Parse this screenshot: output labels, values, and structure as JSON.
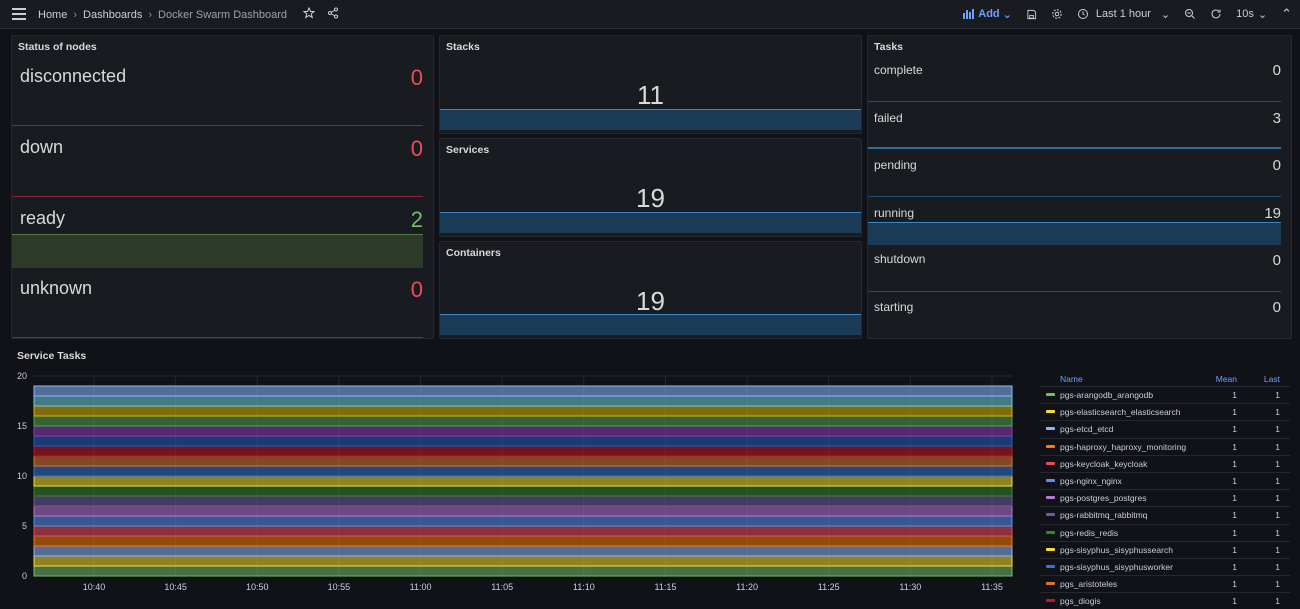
{
  "nav": {
    "breadcrumb": [
      "Home",
      "Dashboards",
      "Docker Swarm Dashboard"
    ],
    "add_label": "Add",
    "time_range": "Last 1 hour",
    "refresh": "10s"
  },
  "nodes_panel": {
    "title": "Status of nodes",
    "rows": [
      {
        "label": "disconnected",
        "value": "0",
        "color": "#f2495c"
      },
      {
        "label": "down",
        "value": "0",
        "color": "#f2495c"
      },
      {
        "label": "ready",
        "value": "2",
        "color": "#73bf69"
      },
      {
        "label": "unknown",
        "value": "0",
        "color": "#f2495c"
      }
    ]
  },
  "stacks": {
    "title": "Stacks",
    "value": "11"
  },
  "services": {
    "title": "Services",
    "value": "19"
  },
  "containers": {
    "title": "Containers",
    "value": "19"
  },
  "tasks_panel": {
    "title": "Tasks",
    "rows": [
      {
        "label": "complete",
        "value": "0"
      },
      {
        "label": "failed",
        "value": "3"
      },
      {
        "label": "pending",
        "value": "0"
      },
      {
        "label": "running",
        "value": "19"
      },
      {
        "label": "shutdown",
        "value": "0"
      },
      {
        "label": "starting",
        "value": "0"
      }
    ]
  },
  "service_tasks": {
    "title": "Service Tasks",
    "legend_headers": {
      "name": "Name",
      "mean": "Mean",
      "last": "Last"
    }
  },
  "chart_data": {
    "type": "area",
    "stacked": true,
    "x": [
      "10:40",
      "10:45",
      "10:50",
      "10:55",
      "11:00",
      "11:05",
      "11:10",
      "11:15",
      "11:20",
      "11:25",
      "11:30",
      "11:35"
    ],
    "yticks": [
      0,
      5,
      10,
      15,
      20
    ],
    "ylim": [
      0,
      20
    ],
    "grid": true,
    "legend_placement": "right",
    "series": [
      {
        "name": "pgs-arangodb_arangodb",
        "values": [
          1,
          1,
          1,
          1,
          1,
          1,
          1,
          1,
          1,
          1,
          1,
          1
        ],
        "mean": "1",
        "last": "1",
        "color": "#73bf69"
      },
      {
        "name": "pgs-elasticsearch_elasticsearch",
        "values": [
          1,
          1,
          1,
          1,
          1,
          1,
          1,
          1,
          1,
          1,
          1,
          1
        ],
        "mean": "1",
        "last": "1",
        "color": "#fade2a"
      },
      {
        "name": "pgs-etcd_etcd",
        "values": [
          1,
          1,
          1,
          1,
          1,
          1,
          1,
          1,
          1,
          1,
          1,
          1
        ],
        "mean": "1",
        "last": "1",
        "color": "#8ab8ff"
      },
      {
        "name": "pgs-haproxy_haproxy_monitoring",
        "values": [
          1,
          1,
          1,
          1,
          1,
          1,
          1,
          1,
          1,
          1,
          1,
          1
        ],
        "mean": "1",
        "last": "1",
        "color": "#ff780a"
      },
      {
        "name": "pgs-keycloak_keycloak",
        "values": [
          1,
          1,
          1,
          1,
          1,
          1,
          1,
          1,
          1,
          1,
          1,
          1
        ],
        "mean": "1",
        "last": "1",
        "color": "#f2495c"
      },
      {
        "name": "pgs-nginx_nginx",
        "values": [
          1,
          1,
          1,
          1,
          1,
          1,
          1,
          1,
          1,
          1,
          1,
          1
        ],
        "mean": "1",
        "last": "1",
        "color": "#5794f2"
      },
      {
        "name": "pgs-postgres_postgres",
        "values": [
          1,
          1,
          1,
          1,
          1,
          1,
          1,
          1,
          1,
          1,
          1,
          1
        ],
        "mean": "1",
        "last": "1",
        "color": "#b877d9"
      },
      {
        "name": "pgs-rabbitmq_rabbitmq",
        "values": [
          1,
          1,
          1,
          1,
          1,
          1,
          1,
          1,
          1,
          1,
          1,
          1
        ],
        "mean": "1",
        "last": "1",
        "color": "#705da0"
      },
      {
        "name": "pgs-redis_redis",
        "values": [
          1,
          1,
          1,
          1,
          1,
          1,
          1,
          1,
          1,
          1,
          1,
          1
        ],
        "mean": "1",
        "last": "1",
        "color": "#37872d"
      },
      {
        "name": "pgs-sisyphus_sisyphussearch",
        "values": [
          1,
          1,
          1,
          1,
          1,
          1,
          1,
          1,
          1,
          1,
          1,
          1
        ],
        "mean": "1",
        "last": "1",
        "color": "#fade2a"
      },
      {
        "name": "pgs-sisyphus_sisyphusworker",
        "values": [
          1,
          1,
          1,
          1,
          1,
          1,
          1,
          1,
          1,
          1,
          1,
          1
        ],
        "mean": "1",
        "last": "1",
        "color": "#3274d9"
      },
      {
        "name": "pgs_aristoteles",
        "values": [
          1,
          1,
          1,
          1,
          1,
          1,
          1,
          1,
          1,
          1,
          1,
          1
        ],
        "mean": "1",
        "last": "1",
        "color": "#e0752d"
      },
      {
        "name": "pgs_diogis",
        "values": [
          1,
          1,
          1,
          1,
          1,
          1,
          1,
          1,
          1,
          1,
          1,
          1
        ],
        "mean": "1",
        "last": "1",
        "color": "#c4162a"
      },
      {
        "name": "",
        "values": [
          1,
          1,
          1,
          1,
          1,
          1,
          1,
          1,
          1,
          1,
          1,
          1
        ],
        "color": "#1f60c4"
      },
      {
        "name": "",
        "values": [
          1,
          1,
          1,
          1,
          1,
          1,
          1,
          1,
          1,
          1,
          1,
          1
        ],
        "color": "#8f3bb8"
      },
      {
        "name": "",
        "values": [
          1,
          1,
          1,
          1,
          1,
          1,
          1,
          1,
          1,
          1,
          1,
          1
        ],
        "color": "#56a64b"
      },
      {
        "name": "",
        "values": [
          1,
          1,
          1,
          1,
          1,
          1,
          1,
          1,
          1,
          1,
          1,
          1
        ],
        "color": "#e0b400"
      },
      {
        "name": "",
        "values": [
          1,
          1,
          1,
          1,
          1,
          1,
          1,
          1,
          1,
          1,
          1,
          1
        ],
        "color": "#6ed0e0"
      },
      {
        "name": "",
        "values": [
          1,
          1,
          1,
          1,
          1,
          1,
          1,
          1,
          1,
          1,
          1,
          1
        ],
        "color": "#8ab8ff"
      }
    ]
  }
}
